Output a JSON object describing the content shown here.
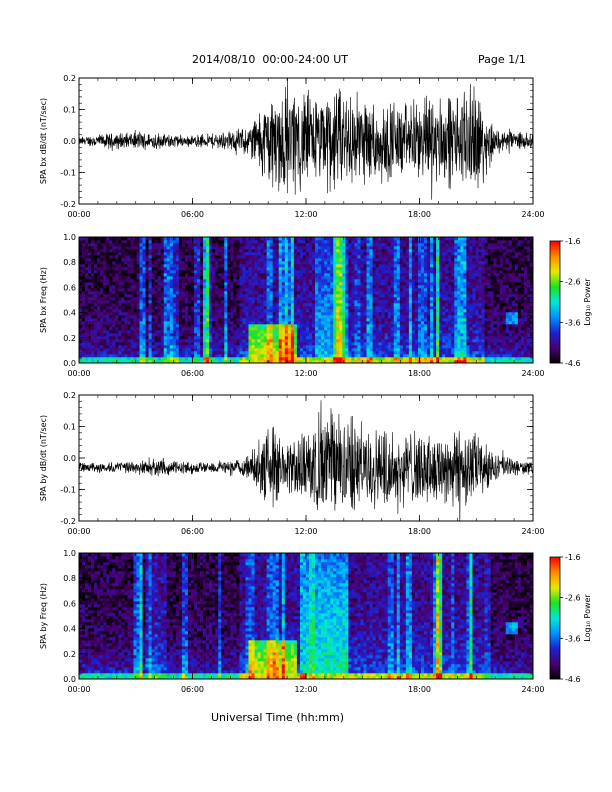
{
  "header": {
    "title": "2014/08/10  00:00-24:00 UT",
    "page": "Page 1/1"
  },
  "xlabel": "Universal Time (hh:mm)",
  "chart_data": [
    {
      "type": "line",
      "ylabel": "SPA bx dB/dt (nT/sec)",
      "x_ticks": [
        "00:00",
        "06:00",
        "12:00",
        "18:00",
        "24:00"
      ],
      "xlim_hours": [
        0,
        24
      ],
      "ylim": [
        -0.2,
        0.2
      ],
      "y_ticks": [
        -0.2,
        -0.1,
        0.0,
        0.1,
        0.2
      ],
      "y_tick_labels": [
        "-0.2",
        "-0.1",
        "0.0",
        "0.1",
        "0.2"
      ],
      "baseline": 0.0,
      "amplitude_envelope": {
        "hours": [
          0,
          2,
          4,
          6,
          8,
          9,
          10,
          11,
          12,
          13,
          14,
          15,
          16,
          17,
          18,
          19,
          20,
          21,
          22,
          23,
          24
        ],
        "amplitude": [
          0.015,
          0.03,
          0.03,
          0.02,
          0.035,
          0.06,
          0.17,
          0.2,
          0.17,
          0.18,
          0.2,
          0.16,
          0.15,
          0.13,
          0.14,
          0.17,
          0.16,
          0.2,
          0.05,
          0.03,
          0.025
        ]
      }
    },
    {
      "type": "heatmap",
      "ylabel": "SPA bx Freq (Hz)",
      "x_ticks": [
        "00:00",
        "06:00",
        "12:00",
        "18:00",
        "24:00"
      ],
      "xlim_hours": [
        0,
        24
      ],
      "ylim": [
        0,
        1.0
      ],
      "y_ticks": [
        0.0,
        0.2,
        0.4,
        0.6,
        0.8,
        1.0
      ],
      "y_tick_labels": [
        "0.0",
        "0.2",
        "0.4",
        "0.6",
        "0.8",
        "1.0"
      ],
      "colorbar": {
        "label": "Log₁₀ Power",
        "ticks": [
          -1.6,
          -2.6,
          -3.6,
          -4.6
        ],
        "tick_labels": [
          "-1.6",
          "-2.6",
          "-3.6",
          "-4.6"
        ],
        "range": [
          -4.6,
          -1.6
        ],
        "colors": [
          "#000000",
          "#4a006e",
          "#1f1fd0",
          "#0090ff",
          "#00e8d8",
          "#20e020",
          "#e8e800",
          "#ff8c00",
          "#ff0000"
        ]
      },
      "features": [
        {
          "hour_start": 9.0,
          "hour_end": 11.5,
          "freq_max": 0.3,
          "level": -2.3
        },
        {
          "hour_start": 12.5,
          "hour_end": 14.2,
          "freq_max": 1.0,
          "level": -3.3
        },
        {
          "hour_start": 22.6,
          "hour_end": 23.2,
          "freq_min": 0.3,
          "freq_max": 0.4,
          "level": -3.4
        }
      ]
    },
    {
      "type": "line",
      "ylabel": "SPA by dB/dt (nT/sec)",
      "x_ticks": [
        "00:00",
        "06:00",
        "12:00",
        "18:00",
        "24:00"
      ],
      "xlim_hours": [
        0,
        24
      ],
      "ylim": [
        -0.2,
        0.2
      ],
      "y_ticks": [
        -0.2,
        -0.1,
        0.0,
        0.1,
        0.2
      ],
      "y_tick_labels": [
        "-0.2",
        "-0.1",
        "0.0",
        "0.1",
        "0.2"
      ],
      "baseline": -0.03,
      "amplitude_envelope": {
        "hours": [
          0,
          2,
          4,
          6,
          8,
          9,
          10,
          11,
          12,
          13,
          14,
          15,
          16,
          17,
          18,
          19,
          20,
          21,
          22,
          23,
          24
        ],
        "amplitude": [
          0.015,
          0.02,
          0.03,
          0.02,
          0.025,
          0.04,
          0.15,
          0.1,
          0.12,
          0.2,
          0.2,
          0.15,
          0.14,
          0.12,
          0.14,
          0.13,
          0.16,
          0.12,
          0.05,
          0.03,
          0.02
        ]
      }
    },
    {
      "type": "heatmap",
      "ylabel": "SPA by Freq (Hz)",
      "x_ticks": [
        "00:00",
        "06:00",
        "12:00",
        "18:00",
        "24:00"
      ],
      "xlim_hours": [
        0,
        24
      ],
      "ylim": [
        0,
        1.0
      ],
      "y_ticks": [
        0.0,
        0.2,
        0.4,
        0.6,
        0.8,
        1.0
      ],
      "y_tick_labels": [
        "0.0",
        "0.2",
        "0.4",
        "0.6",
        "0.8",
        "1.0"
      ],
      "colorbar": {
        "label": "Log₁₀ Power",
        "ticks": [
          -1.6,
          -2.6,
          -3.6,
          -4.6
        ],
        "tick_labels": [
          "-1.6",
          "-2.6",
          "-3.6",
          "-4.6"
        ],
        "range": [
          -4.6,
          -1.6
        ],
        "colors": [
          "#000000",
          "#4a006e",
          "#1f1fd0",
          "#0090ff",
          "#00e8d8",
          "#20e020",
          "#e8e800",
          "#ff8c00",
          "#ff0000"
        ]
      },
      "features": [
        {
          "hour_start": 9.0,
          "hour_end": 11.5,
          "freq_max": 0.3,
          "level": -2.3
        },
        {
          "hour_start": 12.0,
          "hour_end": 14.2,
          "freq_max": 1.0,
          "level": -3.0
        },
        {
          "hour_start": 22.6,
          "hour_end": 23.2,
          "freq_min": 0.35,
          "freq_max": 0.45,
          "level": -3.4
        }
      ]
    }
  ]
}
